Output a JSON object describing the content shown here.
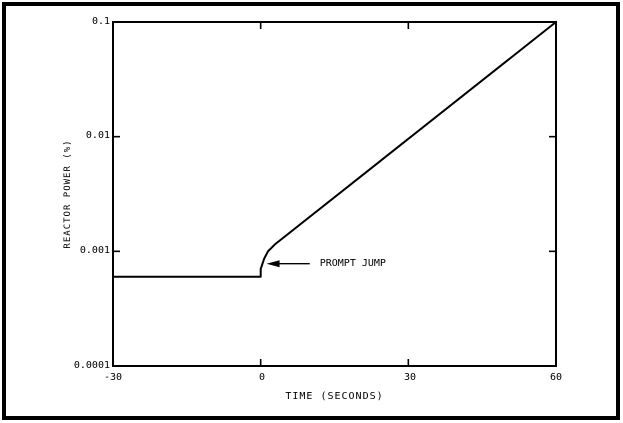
{
  "figure": {
    "background": "#ffffff",
    "frame_color": "#000000",
    "line_color": "#000000"
  },
  "chart_data": {
    "type": "line",
    "title": "",
    "xlabel": "TIME (SECONDS)",
    "ylabel": "REACTOR POWER (%)",
    "x_scale": "linear",
    "y_scale": "log",
    "xlim": [
      -30,
      60
    ],
    "ylim": [
      0.0001,
      0.1
    ],
    "x_ticks": [
      -30,
      0,
      30,
      60
    ],
    "x_tick_labels": [
      "-30",
      "0",
      "30",
      "60"
    ],
    "y_ticks": [
      0.0001,
      0.001,
      0.01,
      0.1
    ],
    "y_tick_labels": [
      "0.0001",
      "0.001",
      "0.01",
      "0.1"
    ],
    "grid": false,
    "legend": false,
    "series": [
      {
        "name": "reactor-power",
        "points": [
          [
            -30,
            0.0006
          ],
          [
            0,
            0.0006
          ],
          [
            0,
            0.0007
          ],
          [
            0.7,
            0.00086
          ],
          [
            1.5,
            0.001
          ],
          [
            2.9,
            0.00115
          ],
          [
            60,
            0.1
          ]
        ]
      }
    ],
    "annotations": [
      {
        "text": "PROMPT JUMP",
        "arrow_tip": [
          1.2,
          0.00078
        ],
        "text_anchor": [
          12.0,
          0.00078
        ]
      }
    ]
  }
}
